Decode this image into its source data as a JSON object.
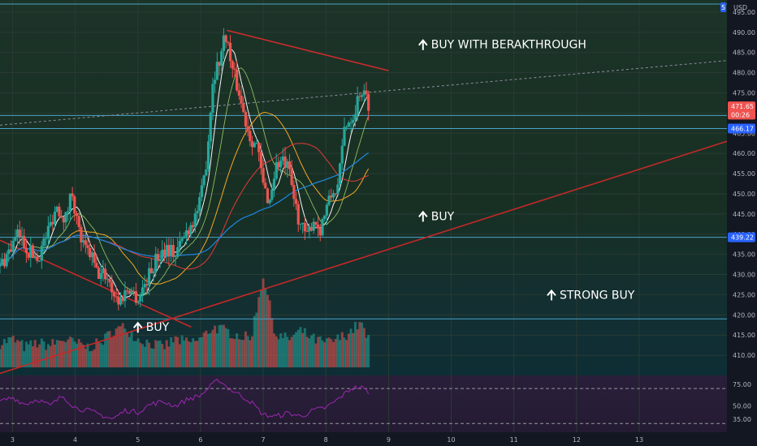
{
  "chart_data": {
    "type": "candlestick",
    "symbol_currency": "USD",
    "y_axis": {
      "min": 405,
      "max": 498,
      "ticks": [
        "410.00",
        "415.00",
        "420.00",
        "425.00",
        "430.00",
        "435.00",
        "440.00",
        "445.00",
        "450.00",
        "455.00",
        "460.00",
        "465.00",
        "470.00",
        "475.00",
        "480.00",
        "485.00",
        "490.00",
        "495.00"
      ]
    },
    "x_axis": {
      "min": 2.8,
      "max": 14.4,
      "ticks": [
        {
          "label": "3",
          "x": 3
        },
        {
          "label": "4",
          "x": 4
        },
        {
          "label": "5",
          "x": 5
        },
        {
          "label": "6",
          "x": 6
        },
        {
          "label": "7",
          "x": 7
        },
        {
          "label": "8",
          "x": 8
        },
        {
          "label": "9",
          "x": 9
        },
        {
          "label": "10",
          "x": 10
        },
        {
          "label": "11",
          "x": 11
        },
        {
          "label": "12",
          "x": 12
        },
        {
          "label": "13",
          "x": 13
        }
      ]
    },
    "price_tags": [
      {
        "value": "471.65",
        "y": 471.65,
        "color": "#f05350"
      },
      {
        "value": "00:26",
        "y": 469.6,
        "color": "#f05350"
      },
      {
        "value": "466.17",
        "y": 466.17,
        "color": "#2962ff"
      },
      {
        "value": "439.22",
        "y": 439.22,
        "color": "#2962ff"
      }
    ],
    "horizontal_levels": [
      497,
      469.4,
      466.17,
      439.22,
      419
    ],
    "trendlines": [
      {
        "name": "upper-resistance",
        "color": "#d12b2b",
        "points": [
          [
            6.42,
            490.5
          ],
          [
            9.0,
            480.5
          ]
        ]
      },
      {
        "name": "rising-support",
        "color": "#c62828",
        "points": [
          [
            2.8,
            405.5
          ],
          [
            14.4,
            463
          ]
        ]
      },
      {
        "name": "falling-line",
        "color": "#c62828",
        "points": [
          [
            2.8,
            438.5
          ],
          [
            5.85,
            417
          ]
        ]
      }
    ],
    "dashed_trendline": {
      "color": "#8a8f99",
      "points": [
        [
          2.8,
          467
        ],
        [
          14.4,
          483
        ]
      ]
    },
    "annotations": [
      {
        "text": "BUY WITH BERAKTHROUGH",
        "x": 9.55,
        "y": 486
      },
      {
        "text": "BUY",
        "x": 9.55,
        "y": 443.5
      },
      {
        "text": "STRONG BUY",
        "x": 11.6,
        "y": 424
      },
      {
        "text": "BUY",
        "x": 5.0,
        "y": 416
      }
    ],
    "price_path": [
      [
        2.8,
        432
      ],
      [
        2.95,
        436
      ],
      [
        3.1,
        440
      ],
      [
        3.25,
        436
      ],
      [
        3.4,
        434
      ],
      [
        3.55,
        440
      ],
      [
        3.7,
        447
      ],
      [
        3.85,
        444
      ],
      [
        3.95,
        451
      ],
      [
        4.05,
        441
      ],
      [
        4.15,
        436
      ],
      [
        4.25,
        435
      ],
      [
        4.35,
        430
      ],
      [
        4.5,
        430
      ],
      [
        4.6,
        426
      ],
      [
        4.7,
        423
      ],
      [
        4.85,
        427
      ],
      [
        5.0,
        424
      ],
      [
        5.15,
        429
      ],
      [
        5.3,
        434
      ],
      [
        5.45,
        437
      ],
      [
        5.6,
        435
      ],
      [
        5.75,
        440
      ],
      [
        5.9,
        444
      ],
      [
        6.0,
        448
      ],
      [
        6.1,
        459
      ],
      [
        6.2,
        479
      ],
      [
        6.3,
        483
      ],
      [
        6.4,
        490
      ],
      [
        6.5,
        481
      ],
      [
        6.6,
        476
      ],
      [
        6.7,
        469
      ],
      [
        6.8,
        464
      ],
      [
        6.9,
        462
      ],
      [
        7.0,
        452
      ],
      [
        7.1,
        448
      ],
      [
        7.2,
        457
      ],
      [
        7.3,
        458
      ],
      [
        7.4,
        456
      ],
      [
        7.5,
        448
      ],
      [
        7.6,
        442
      ],
      [
        7.7,
        439
      ],
      [
        7.8,
        444
      ],
      [
        7.9,
        441
      ],
      [
        8.0,
        446
      ],
      [
        8.1,
        450
      ],
      [
        8.2,
        452
      ],
      [
        8.3,
        467
      ],
      [
        8.45,
        470
      ],
      [
        8.55,
        476
      ],
      [
        8.7,
        472
      ]
    ],
    "volume_path": [
      [
        2.8,
        413
      ],
      [
        3.0,
        414
      ],
      [
        3.2,
        412
      ],
      [
        3.4,
        413
      ],
      [
        3.6,
        412.5
      ],
      [
        3.8,
        414
      ],
      [
        4.0,
        413
      ],
      [
        4.2,
        412
      ],
      [
        4.4,
        413
      ],
      [
        4.6,
        416
      ],
      [
        4.8,
        417
      ],
      [
        5.0,
        414
      ],
      [
        5.2,
        413
      ],
      [
        5.4,
        412
      ],
      [
        5.6,
        414
      ],
      [
        5.8,
        413
      ],
      [
        6.0,
        414
      ],
      [
        6.2,
        417
      ],
      [
        6.4,
        416
      ],
      [
        6.6,
        415
      ],
      [
        6.8,
        414
      ],
      [
        7.0,
        430
      ],
      [
        7.2,
        415
      ],
      [
        7.4,
        414
      ],
      [
        7.6,
        416
      ],
      [
        7.8,
        414
      ],
      [
        8.0,
        413
      ],
      [
        8.2,
        414
      ],
      [
        8.4,
        416
      ],
      [
        8.55,
        418
      ],
      [
        8.7,
        413
      ]
    ],
    "rsi": {
      "ymin": 20,
      "ymax": 85,
      "ticks": [
        "75.00",
        "50.00",
        "35.00"
      ],
      "levels": [
        70,
        30
      ],
      "path": [
        [
          2.8,
          55
        ],
        [
          3.0,
          60
        ],
        [
          3.2,
          52
        ],
        [
          3.4,
          58
        ],
        [
          3.6,
          50
        ],
        [
          3.8,
          62
        ],
        [
          4.0,
          48
        ],
        [
          4.2,
          45
        ],
        [
          4.4,
          40
        ],
        [
          4.6,
          35
        ],
        [
          4.8,
          45
        ],
        [
          5.0,
          43
        ],
        [
          5.2,
          52
        ],
        [
          5.4,
          55
        ],
        [
          5.6,
          50
        ],
        [
          5.8,
          58
        ],
        [
          6.0,
          62
        ],
        [
          6.2,
          75
        ],
        [
          6.3,
          80
        ],
        [
          6.45,
          70
        ],
        [
          6.6,
          64
        ],
        [
          6.8,
          55
        ],
        [
          7.0,
          40
        ],
        [
          7.2,
          38
        ],
        [
          7.4,
          42
        ],
        [
          7.6,
          38
        ],
        [
          7.8,
          45
        ],
        [
          8.0,
          48
        ],
        [
          8.2,
          58
        ],
        [
          8.4,
          70
        ],
        [
          8.55,
          72
        ],
        [
          8.7,
          65
        ]
      ]
    }
  },
  "colors": {
    "bull": "#26a69a",
    "bear": "#ef5350",
    "rsi_line": "#9c27b0",
    "ma_fast": "#f7f7f7",
    "ma_orange": "#f5a623",
    "ma_red": "#e53935",
    "ma_blue": "#1e88e5"
  },
  "header": {
    "currency": "USD",
    "top_value_partial": "5"
  }
}
